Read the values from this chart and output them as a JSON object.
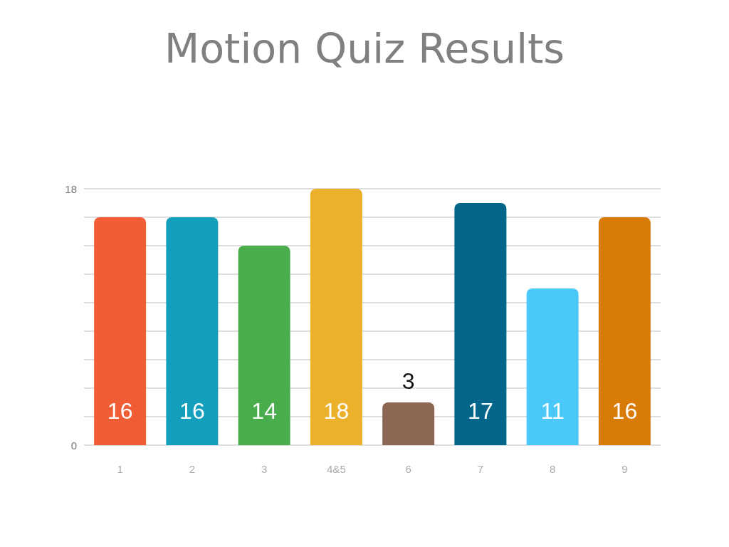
{
  "chart_data": {
    "type": "bar",
    "title": "Motion Quiz Results",
    "categories": [
      "1",
      "2",
      "3",
      "4&5",
      "6",
      "7",
      "8",
      "9"
    ],
    "values": [
      16,
      16,
      14,
      18,
      3,
      17,
      11,
      16
    ],
    "colors": [
      "#f05d35",
      "#149fbd",
      "#49ad4b",
      "#ebb12a",
      "#8c6753",
      "#036589",
      "#4ac8f7",
      "#d97c07"
    ],
    "ylim": [
      0,
      18
    ],
    "yticks": [
      0,
      {
        "value": 2,
        "label": null
      },
      {
        "value": 4,
        "label": null
      },
      {
        "value": 6,
        "label": null
      },
      {
        "value": 8,
        "label": null
      },
      {
        "value": 10,
        "label": null
      },
      {
        "value": 12,
        "label": null
      },
      {
        "value": 14,
        "label": null
      },
      {
        "value": 16,
        "label": null
      },
      18
    ],
    "grid": "y",
    "data_labels": true
  }
}
